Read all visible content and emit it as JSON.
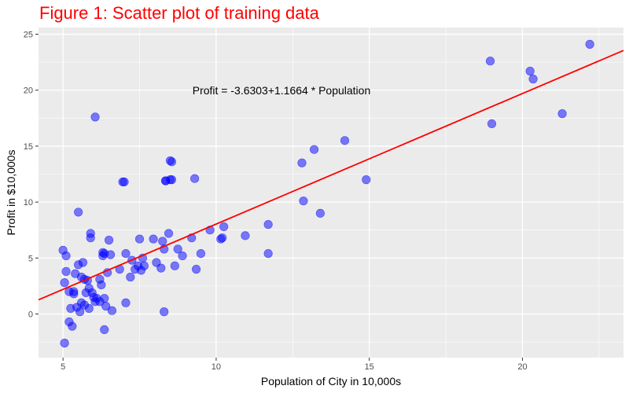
{
  "chart_data": {
    "type": "scatter",
    "title": "Figure 1: Scatter plot of training data",
    "xlabel": "Population of City in 10,000s",
    "ylabel": "Profit in $10,000s",
    "xlim": [
      4.2,
      23.3
    ],
    "ylim": [
      -3.9,
      25.6
    ],
    "xticks": [
      5,
      10,
      15,
      20
    ],
    "yticks": [
      0,
      5,
      10,
      15,
      20,
      25
    ],
    "annotation": "Profit = -3.6303+1.1664 * Population",
    "fit_line": {
      "intercept": -3.6303,
      "slope": 1.1664
    },
    "colors": {
      "title": "#ff0000",
      "panel": "#ebebeb",
      "grid": "#ffffff",
      "points": "#0000ff",
      "line": "#ff0000"
    },
    "series": [
      {
        "name": "training data",
        "x": [
          5.0,
          5.1,
          5.1,
          5.05,
          5.05,
          5.2,
          5.25,
          5.2,
          5.3,
          5.35,
          5.35,
          5.4,
          5.45,
          5.5,
          5.5,
          5.55,
          5.6,
          5.6,
          5.65,
          5.7,
          5.7,
          5.75,
          5.8,
          5.85,
          5.85,
          5.9,
          5.9,
          5.95,
          6.0,
          6.05,
          6.1,
          6.2,
          6.25,
          6.3,
          6.35,
          6.35,
          6.4,
          6.45,
          6.5,
          6.55,
          6.6,
          6.85,
          6.95,
          7.05,
          7.2,
          7.25,
          7.35,
          7.45,
          7.5,
          7.55,
          7.6,
          7.65,
          7.95,
          8.05,
          8.2,
          8.25,
          8.3,
          8.35,
          8.45,
          8.55,
          8.55,
          8.65,
          8.75,
          8.9,
          9.2,
          9.3,
          9.35,
          9.5,
          9.8,
          10.15,
          10.2,
          10.25,
          10.95,
          11.7,
          11.7,
          12.8,
          12.85,
          13.2,
          13.4,
          14.2,
          14.9,
          18.95,
          19.0,
          20.25,
          20.35,
          21.3,
          22.2,
          6.05,
          7.0,
          8.5,
          8.5,
          8.35,
          6.3,
          6.35,
          6.2,
          7.05,
          8.3
        ],
        "y": [
          5.7,
          5.2,
          3.8,
          -2.6,
          2.8,
          2.0,
          0.5,
          -0.7,
          -1.1,
          2.0,
          1.8,
          3.6,
          0.6,
          4.4,
          9.1,
          0.2,
          1.0,
          3.3,
          4.6,
          3.1,
          0.8,
          1.9,
          3.0,
          0.5,
          2.3,
          7.2,
          6.8,
          1.9,
          1.5,
          1.1,
          1.4,
          3.1,
          2.6,
          5.2,
          5.4,
          1.4,
          0.7,
          3.7,
          6.6,
          5.3,
          0.3,
          4.0,
          11.8,
          5.4,
          3.3,
          4.8,
          4.0,
          4.3,
          6.7,
          3.9,
          5.0,
          4.3,
          6.7,
          4.6,
          4.1,
          6.5,
          5.8,
          11.9,
          7.2,
          13.6,
          12.0,
          4.3,
          5.8,
          5.2,
          6.8,
          12.1,
          4.0,
          5.4,
          7.5,
          6.7,
          6.8,
          7.8,
          7.0,
          8.0,
          5.4,
          13.5,
          10.1,
          14.7,
          9.0,
          15.5,
          12.0,
          22.6,
          17.0,
          21.7,
          21.0,
          17.9,
          24.1,
          17.6,
          11.8,
          13.7,
          12.0,
          11.9,
          5.5,
          -1.4,
          1.1,
          1.0,
          0.2
        ]
      }
    ]
  }
}
